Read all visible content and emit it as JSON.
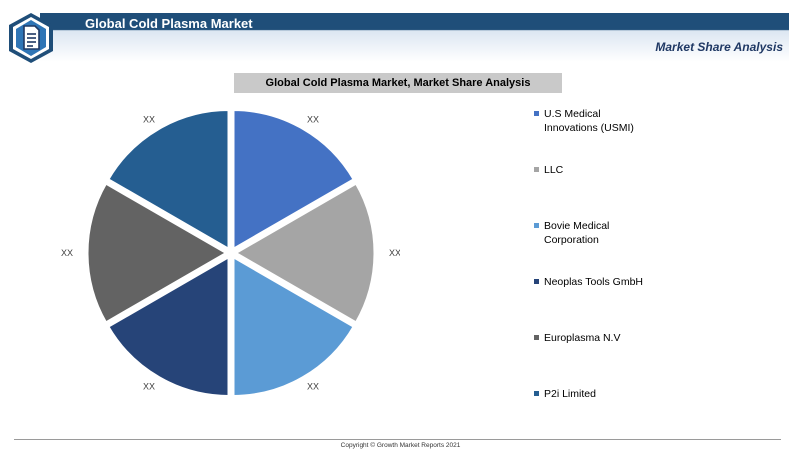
{
  "header": {
    "title": "Global Cold Plasma Market",
    "subtitle": "Market Share Analysis",
    "logo_icon": "document-icon"
  },
  "chart_data": {
    "type": "pie",
    "title": "Global Cold Plasma Market, Market Share Analysis",
    "legend_position": "right",
    "slices": [
      {
        "name": "U.S Medical Innovations (USMI)",
        "value": 1,
        "label": "XX",
        "color": "#4472c4"
      },
      {
        "name": "LLC",
        "value": 1,
        "label": "XX",
        "color": "#a5a5a5"
      },
      {
        "name": "Bovie Medical Corporation",
        "value": 1,
        "label": "XX",
        "color": "#5b9bd5"
      },
      {
        "name": "Neoplas Tools GmbH",
        "value": 1,
        "label": "XX",
        "color": "#264478"
      },
      {
        "name": "Europlasma N.V",
        "value": 1,
        "label": "XX",
        "color": "#636363"
      },
      {
        "name": "P2i Limited",
        "value": 1,
        "label": "XX",
        "color": "#255e91"
      }
    ]
  },
  "legend": {
    "items": [
      {
        "label": "U.S Medical Innovations (USMI)",
        "color": "#4472c4"
      },
      {
        "label": "LLC",
        "color": "#a5a5a5"
      },
      {
        "label": "Bovie Medical Corporation",
        "color": "#5b9bd5"
      },
      {
        "label": "Neoplas Tools GmbH",
        "color": "#264478"
      },
      {
        "label": "Europlasma N.V",
        "color": "#636363"
      },
      {
        "label": "P2i Limited",
        "color": "#255e91"
      }
    ]
  },
  "footer": {
    "copyright": "Copyright © Growth Market Reports 2021"
  }
}
